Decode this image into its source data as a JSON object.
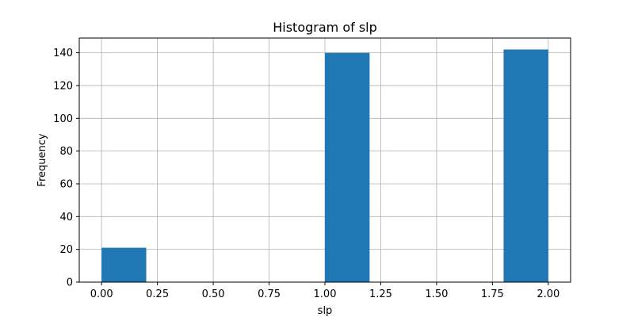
{
  "chart_data": {
    "type": "bar",
    "title": "Histogram of slp",
    "xlabel": "slp",
    "ylabel": "Frequency",
    "bins": [
      {
        "start": 0.0,
        "end": 0.2,
        "value": 21
      },
      {
        "start": 0.2,
        "end": 0.4,
        "value": 0
      },
      {
        "start": 0.4,
        "end": 0.6,
        "value": 0
      },
      {
        "start": 0.6,
        "end": 0.8,
        "value": 0
      },
      {
        "start": 0.8,
        "end": 1.0,
        "value": 0
      },
      {
        "start": 1.0,
        "end": 1.2,
        "value": 140
      },
      {
        "start": 1.2,
        "end": 1.4,
        "value": 0
      },
      {
        "start": 1.4,
        "end": 1.6,
        "value": 0
      },
      {
        "start": 1.6,
        "end": 1.8,
        "value": 0
      },
      {
        "start": 1.8,
        "end": 2.0,
        "value": 142
      }
    ],
    "xlim": [
      -0.1,
      2.1
    ],
    "ylim": [
      0,
      149
    ],
    "xticks": [
      0.0,
      0.25,
      0.5,
      0.75,
      1.0,
      1.25,
      1.5,
      1.75,
      2.0
    ],
    "xtick_labels": [
      "0.00",
      "0.25",
      "0.50",
      "0.75",
      "1.00",
      "1.25",
      "1.50",
      "1.75",
      "2.00"
    ],
    "yticks": [
      0,
      20,
      40,
      60,
      80,
      100,
      120,
      140
    ],
    "ytick_labels": [
      "0",
      "20",
      "40",
      "60",
      "80",
      "100",
      "120",
      "140"
    ],
    "grid": true,
    "bar_color": "#1f77b4",
    "grid_color": "#b0b0b0"
  }
}
